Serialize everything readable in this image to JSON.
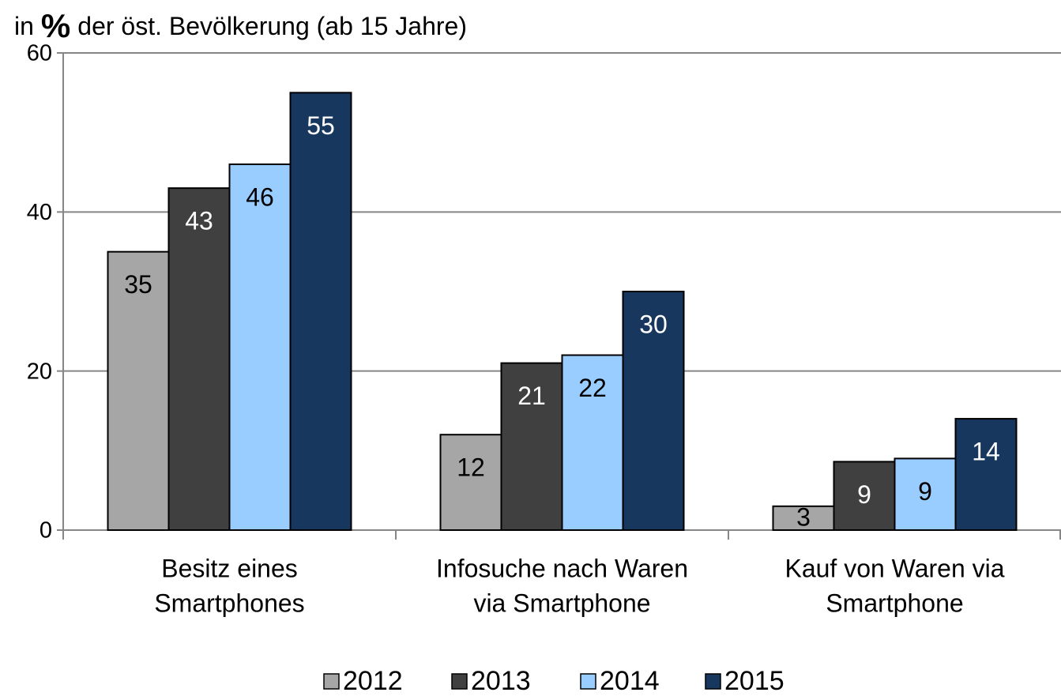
{
  "chart_data": {
    "type": "bar",
    "title_parts": [
      "in",
      "%",
      "der öst. Bevölkerung (ab 15 Jahre)"
    ],
    "categories": [
      [
        "Besitz eines",
        "Smartphones"
      ],
      [
        "Infosuche nach Waren",
        "via Smartphone"
      ],
      [
        "Kauf von Waren via",
        "Smartphone"
      ]
    ],
    "series": [
      {
        "name": "2012",
        "color": "#a6a6a6",
        "label_color": "#000000",
        "values": [
          35,
          12,
          3
        ]
      },
      {
        "name": "2013",
        "color": "#404040",
        "label_color": "#ffffff",
        "values": [
          43,
          21,
          8.6
        ],
        "value_labels": [
          "43",
          "21",
          "9"
        ]
      },
      {
        "name": "2014",
        "color": "#99ccff",
        "label_color": "#000000",
        "values": [
          46,
          22,
          9
        ]
      },
      {
        "name": "2015",
        "color": "#17375e",
        "label_color": "#ffffff",
        "values": [
          55,
          30,
          14
        ]
      }
    ],
    "ylim": [
      0,
      60
    ],
    "yticks": [
      0,
      20,
      40,
      60
    ],
    "grid": true,
    "legend": "bottom"
  }
}
